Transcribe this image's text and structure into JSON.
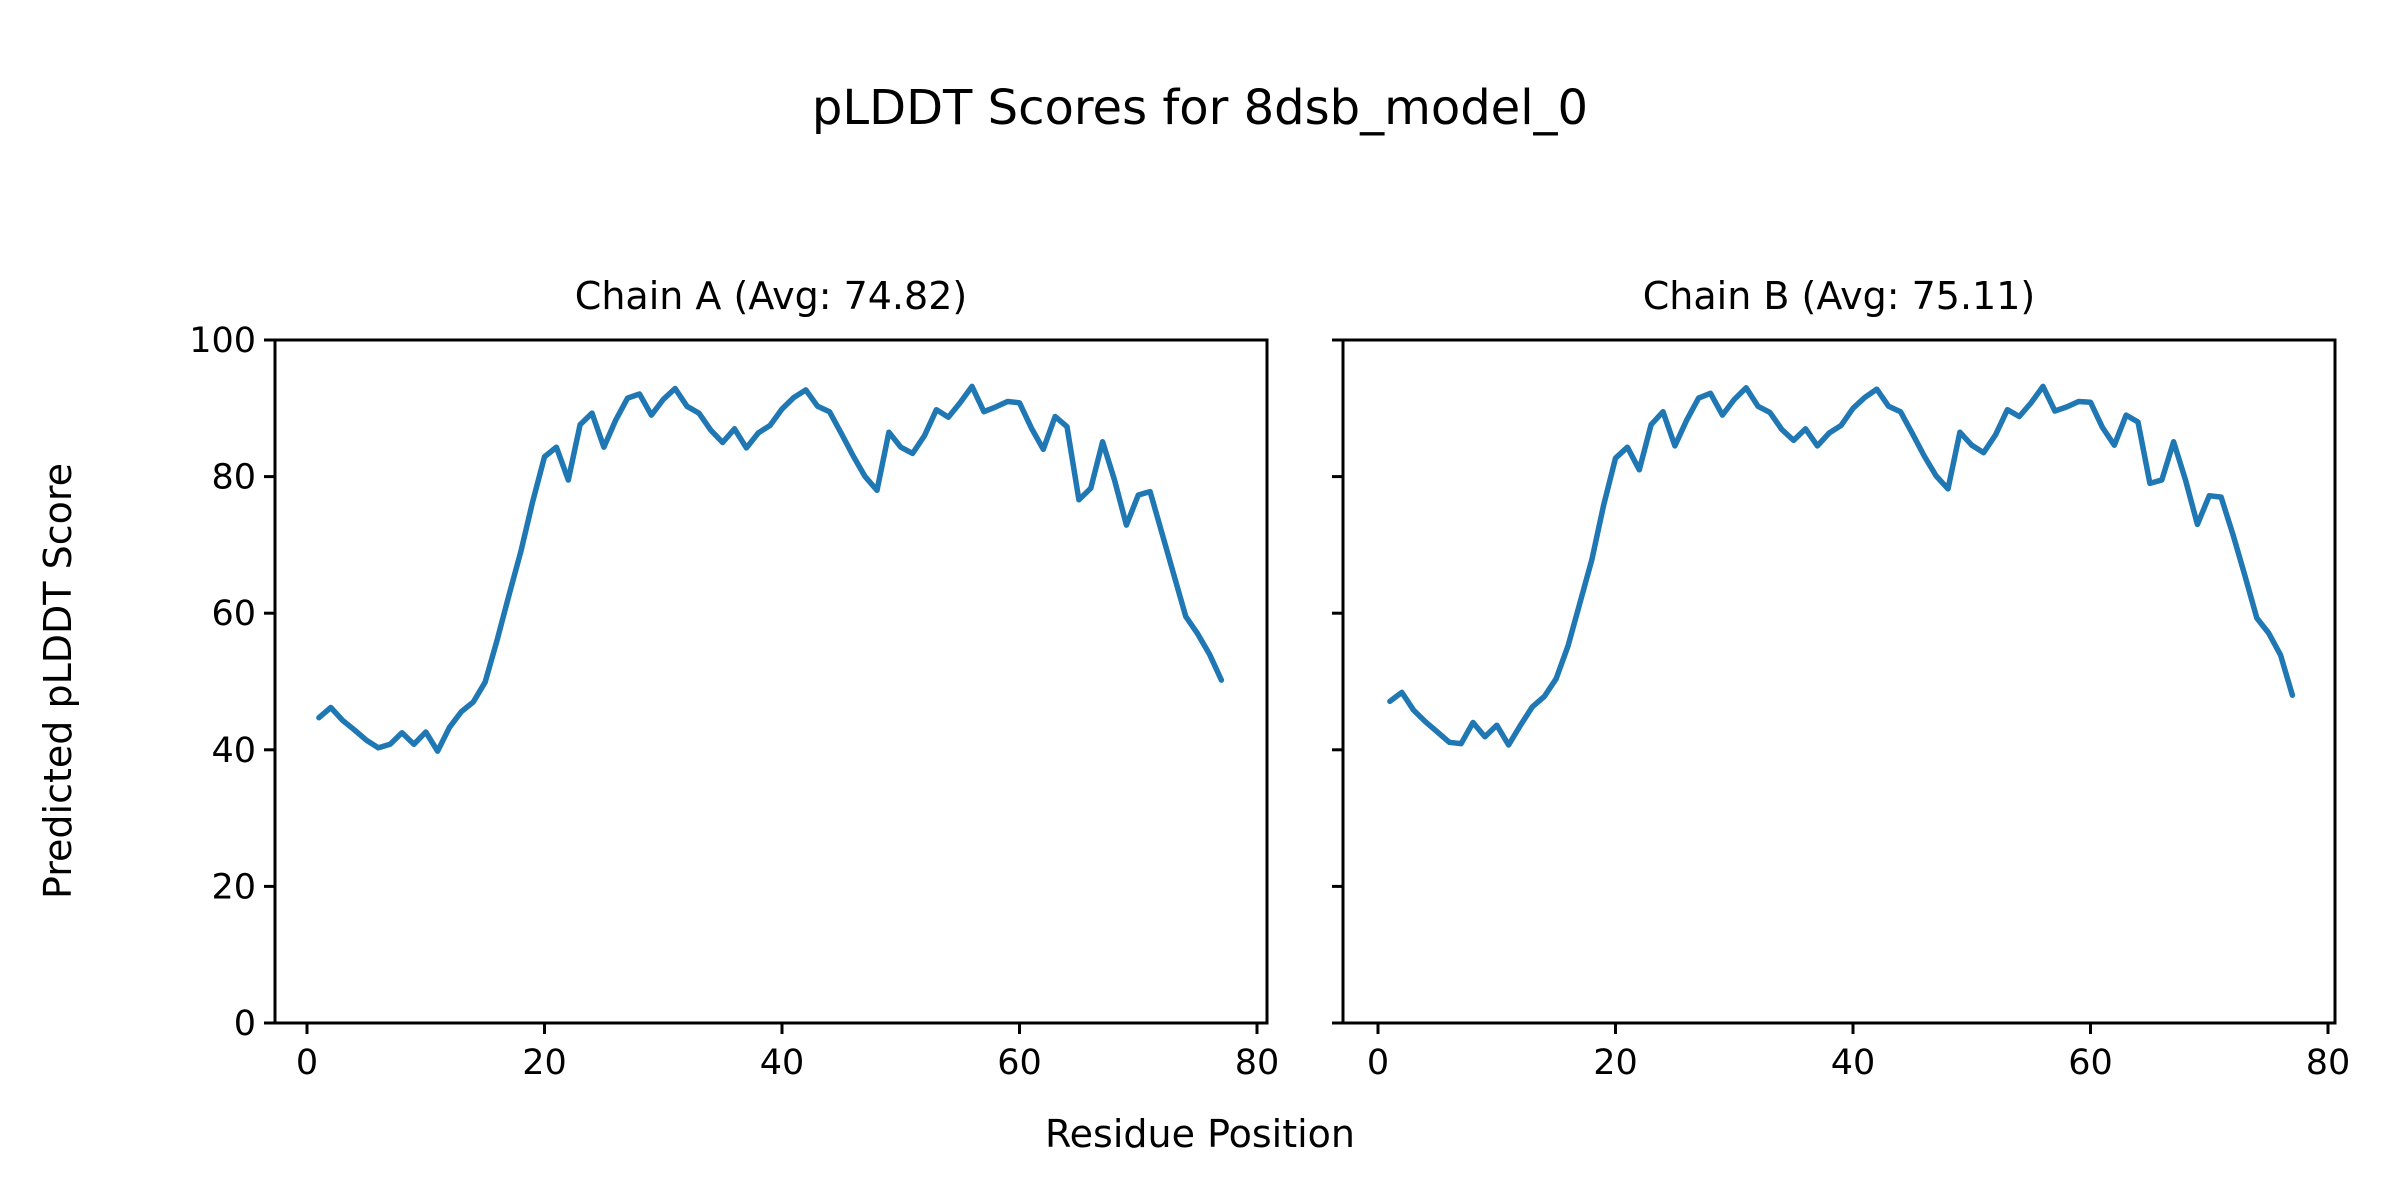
{
  "figure": {
    "title": "pLDDT Scores for 8dsb_model_0",
    "xlabel": "Residue Position",
    "ylabel": "Predicted pLDDT Score",
    "background_color": "#ffffff",
    "text_color": "#000000",
    "axis_color": "#000000"
  },
  "chart_data": [
    {
      "type": "line",
      "title": "Chain A (Avg: 74.82)",
      "chain": "A",
      "average": 74.82,
      "line_color": "#1f77b4",
      "grid": false,
      "legend": "none",
      "xlim": [
        -2.8,
        80.8
      ],
      "ylim": [
        0,
        100
      ],
      "x_ticks": [
        0,
        20,
        40,
        60,
        80
      ],
      "y_ticks": [
        0,
        20,
        40,
        60,
        80,
        100
      ],
      "show_y_tick_labels": true,
      "x": [
        1,
        2,
        3,
        4,
        5,
        6,
        7,
        8,
        9,
        10,
        11,
        12,
        13,
        14,
        15,
        16,
        17,
        18,
        19,
        20,
        21,
        22,
        23,
        24,
        25,
        26,
        27,
        28,
        29,
        30,
        31,
        32,
        33,
        34,
        35,
        36,
        37,
        38,
        39,
        40,
        41,
        42,
        43,
        44,
        45,
        46,
        47,
        48,
        49,
        50,
        51,
        52,
        53,
        54,
        55,
        56,
        57,
        58,
        59,
        60,
        61,
        62,
        63,
        64,
        65,
        66,
        67,
        68,
        69,
        70,
        71,
        72,
        73,
        74,
        75,
        76,
        77
      ],
      "values": [
        44.7,
        46.2,
        44.3,
        42.9,
        41.4,
        40.3,
        40.8,
        42.5,
        40.8,
        42.6,
        39.8,
        43.3,
        45.6,
        47.0,
        49.9,
        56.0,
        62.6,
        69.0,
        76.3,
        82.9,
        84.3,
        79.5,
        87.6,
        89.3,
        84.3,
        88.3,
        91.5,
        92.1,
        89.0,
        91.3,
        92.9,
        90.3,
        89.3,
        86.8,
        85.0,
        87.0,
        84.2,
        86.4,
        87.5,
        89.9,
        91.6,
        92.7,
        90.3,
        89.5,
        86.3,
        83.0,
        80.0,
        78.0,
        86.5,
        84.3,
        83.4,
        86.0,
        89.8,
        88.7,
        90.8,
        93.2,
        89.5,
        90.2,
        91.0,
        90.8,
        87.1,
        84.0,
        88.8,
        87.3,
        76.6,
        78.3,
        85.1,
        79.5,
        72.9,
        77.3,
        77.8,
        71.7,
        65.6,
        59.5,
        57.0,
        54.0,
        50.2
      ]
    },
    {
      "type": "line",
      "title": "Chain B (Avg: 75.11)",
      "chain": "B",
      "average": 75.11,
      "line_color": "#1f77b4",
      "grid": false,
      "legend": "none",
      "xlim": [
        -2.8,
        80.8
      ],
      "ylim": [
        0,
        100
      ],
      "x_ticks": [
        0,
        20,
        40,
        60,
        80
      ],
      "y_ticks": [
        0,
        20,
        40,
        60,
        80,
        100
      ],
      "show_y_tick_labels": false,
      "x": [
        1,
        2,
        3,
        4,
        5,
        6,
        7,
        8,
        9,
        10,
        11,
        12,
        13,
        14,
        15,
        16,
        17,
        18,
        19,
        20,
        21,
        22,
        23,
        24,
        25,
        26,
        27,
        28,
        29,
        30,
        31,
        32,
        33,
        34,
        35,
        36,
        37,
        38,
        39,
        40,
        41,
        42,
        43,
        44,
        45,
        46,
        47,
        48,
        49,
        50,
        51,
        52,
        53,
        54,
        55,
        56,
        57,
        58,
        59,
        60,
        61,
        62,
        63,
        64,
        65,
        66,
        67,
        68,
        69,
        70,
        71,
        72,
        73,
        74,
        75,
        76,
        77
      ],
      "values": [
        47.1,
        48.4,
        45.8,
        44.1,
        42.6,
        41.1,
        40.9,
        44.0,
        41.9,
        43.6,
        40.7,
        43.6,
        46.3,
        47.8,
        50.4,
        55.2,
        61.5,
        67.8,
        75.8,
        82.7,
        84.3,
        81.0,
        87.6,
        89.5,
        84.5,
        88.3,
        91.5,
        92.2,
        89.0,
        91.3,
        93.0,
        90.3,
        89.4,
        86.9,
        85.3,
        87.0,
        84.5,
        86.4,
        87.5,
        90.0,
        91.6,
        92.8,
        90.3,
        89.5,
        86.3,
        83.0,
        80.1,
        78.2,
        86.5,
        84.6,
        83.5,
        86.1,
        89.8,
        88.8,
        90.8,
        93.2,
        89.6,
        90.2,
        91.0,
        90.9,
        87.2,
        84.6,
        89.0,
        88.0,
        79.0,
        79.5,
        85.1,
        79.5,
        73.0,
        77.2,
        77.0,
        71.5,
        65.5,
        59.3,
        57.1,
        53.9,
        48.0
      ]
    }
  ]
}
